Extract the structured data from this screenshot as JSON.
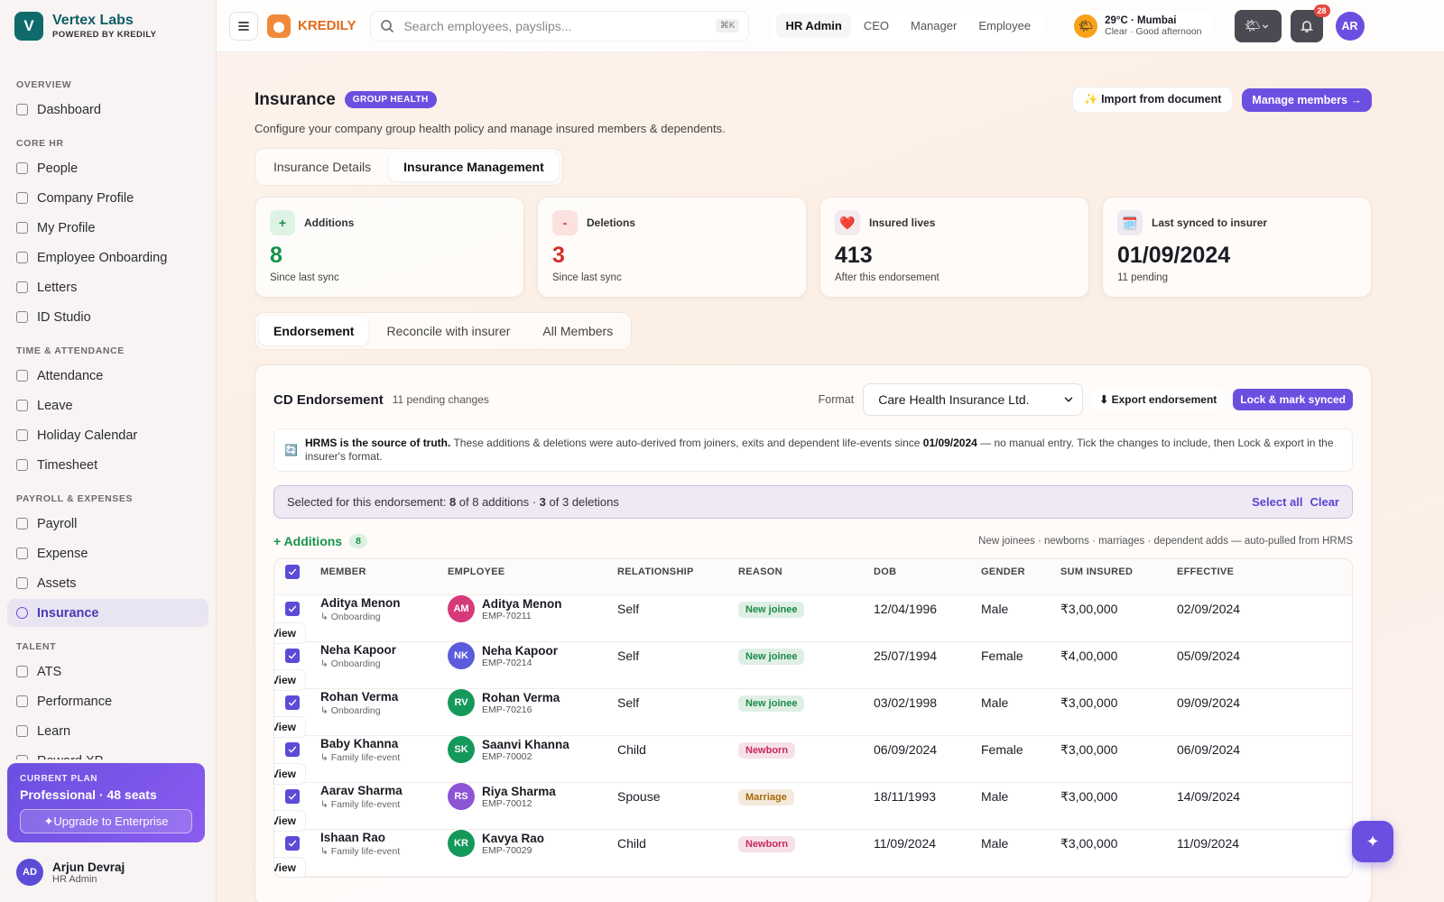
{
  "sidebar": {
    "logo": "V",
    "brand": "Vertex Labs",
    "powered": "POWERED BY KREDILY",
    "sections": [
      {
        "title": "OVERVIEW",
        "items": [
          {
            "label": "Dashboard"
          }
        ]
      },
      {
        "title": "CORE HR",
        "items": [
          {
            "label": "People"
          },
          {
            "label": "Company Profile"
          },
          {
            "label": "My Profile"
          },
          {
            "label": "Employee Onboarding"
          },
          {
            "label": "Letters"
          },
          {
            "label": "ID Studio"
          }
        ]
      },
      {
        "title": "TIME & ATTENDANCE",
        "items": [
          {
            "label": "Attendance"
          },
          {
            "label": "Leave"
          },
          {
            "label": "Holiday Calendar"
          },
          {
            "label": "Timesheet"
          }
        ]
      },
      {
        "title": "PAYROLL & EXPENSES",
        "items": [
          {
            "label": "Payroll"
          },
          {
            "label": "Expense"
          },
          {
            "label": "Assets"
          },
          {
            "label": "Insurance",
            "active": true
          }
        ]
      },
      {
        "title": "TALENT",
        "items": [
          {
            "label": "ATS"
          },
          {
            "label": "Performance"
          },
          {
            "label": "Learn"
          },
          {
            "label": "Reward XP"
          }
        ]
      }
    ],
    "plan": {
      "label": "CURRENT PLAN",
      "name": "Professional · 48 seats",
      "button": "✦Upgrade to Enterprise"
    },
    "user": {
      "initials": "AD",
      "name": "Arjun Devraj",
      "role": "HR Admin"
    }
  },
  "topbar": {
    "product": "KREDILY",
    "search_placeholder": "Search employees, payslips...",
    "shortcut": "⌘K",
    "roles": [
      {
        "label": "HR Admin",
        "active": true
      },
      {
        "label": "CEO"
      },
      {
        "label": "Manager"
      },
      {
        "label": "Employee"
      }
    ],
    "weather": {
      "icon": "🌤",
      "temp": "29°C · Mumbai",
      "desc": "Clear · Good afternoon"
    },
    "theme_icon": "🌤",
    "notifications": "28",
    "avatar": "AR"
  },
  "page": {
    "title": "Insurance",
    "badge": "GROUP HEALTH",
    "description": "Configure your company group health policy and manage insured members & dependents.",
    "import_button": "✨ Import from document",
    "manage_button": "Manage members →",
    "tabs": [
      {
        "label": "Insurance Details"
      },
      {
        "label": "Insurance Management",
        "active": true
      }
    ],
    "stats": [
      {
        "icon": "+",
        "label": "Additions",
        "value": "8",
        "sub": "Since last sync",
        "color": "#17924a",
        "icon_bg": "#dff3e5"
      },
      {
        "icon": "-",
        "label": "Deletions",
        "value": "3",
        "sub": "Since last sync",
        "color": "#d0312d",
        "icon_bg": "#fbe1df"
      },
      {
        "icon": "❤️",
        "label": "Insured lives",
        "value": "413",
        "sub": "After this endorsement",
        "color": "#1b1b24",
        "icon_bg": "#f4e9ee"
      },
      {
        "icon": "🗓️",
        "label": "Last synced to insurer",
        "value": "01/09/2024",
        "sub": "11 pending",
        "color": "#1b1b24",
        "icon_bg": "#ecebf3"
      }
    ],
    "subtabs": [
      {
        "label": "Endorsement",
        "active": true
      },
      {
        "label": "Reconcile with insurer"
      },
      {
        "label": "All Members"
      }
    ],
    "endorsement": {
      "title": "CD Endorsement",
      "subtitle": "11 pending changes",
      "format_label": "Format",
      "format_value": "Care Health Insurance Ltd.",
      "export_button": "⬇ Export endorsement",
      "lock_button": "Lock & mark synced",
      "info": {
        "icon": "🔄",
        "bold": "HRMS is the source of truth.",
        "text1": " These additions & deletions were auto-derived from joiners, exits and dependent life-events since ",
        "date": "01/09/2024",
        "text2": " — no manual entry. Tick the changes to include, then Lock & export in the insurer's format."
      },
      "selection": {
        "prefix": "Selected for this endorsement: ",
        "additions_selected": "8",
        "additions_text": " of 8 additions · ",
        "deletions_selected": "3",
        "deletions_text": " of 3 deletions",
        "select_all": "Select all",
        "clear": "Clear"
      },
      "additions": {
        "title": "+ Additions",
        "count": "8",
        "note": "New joinees · newborns · marriages · dependent adds — auto-pulled from HRMS"
      },
      "columns": [
        "MEMBER",
        "EMPLOYEE",
        "RELATIONSHIP",
        "REASON",
        "DOB",
        "GENDER",
        "SUM INSURED",
        "EFFECTIVE"
      ],
      "rows": [
        {
          "member": "Aditya Menon",
          "member_sub": "↳ Onboarding",
          "initials": "AM",
          "avatar_color": "#d63a7a",
          "employee": "Aditya Menon",
          "emp_id": "EMP-70211",
          "relationship": "Self",
          "reason": "New joinee",
          "reason_color": "#1a8a47",
          "dob": "12/04/1996",
          "gender": "Male",
          "sum_insured": "₹3,00,000",
          "effective": "02/09/2024",
          "action": "View"
        },
        {
          "member": "Neha Kapoor",
          "member_sub": "↳ Onboarding",
          "initials": "NK",
          "avatar_color": "#5b5bdc",
          "employee": "Neha Kapoor",
          "emp_id": "EMP-70214",
          "relationship": "Self",
          "reason": "New joinee",
          "reason_color": "#1a8a47",
          "dob": "25/07/1994",
          "gender": "Female",
          "sum_insured": "₹4,00,000",
          "effective": "05/09/2024",
          "action": "View"
        },
        {
          "member": "Rohan Verma",
          "member_sub": "↳ Onboarding",
          "initials": "RV",
          "avatar_color": "#15995a",
          "employee": "Rohan Verma",
          "emp_id": "EMP-70216",
          "relationship": "Self",
          "reason": "New joinee",
          "reason_color": "#1a8a47",
          "dob": "03/02/1998",
          "gender": "Male",
          "sum_insured": "₹3,00,000",
          "effective": "09/09/2024",
          "action": "View"
        },
        {
          "member": "Baby Khanna",
          "member_sub": "↳ Family life-event",
          "initials": "SK",
          "avatar_color": "#15995a",
          "employee": "Saanvi Khanna",
          "emp_id": "EMP-70002",
          "relationship": "Child",
          "reason": "Newborn",
          "reason_color": "#c7285e",
          "dob": "06/09/2024",
          "gender": "Female",
          "sum_insured": "₹3,00,000",
          "effective": "06/09/2024",
          "action": "View"
        },
        {
          "member": "Aarav Sharma",
          "member_sub": "↳ Family life-event",
          "initials": "RS",
          "avatar_color": "#8d54d6",
          "employee": "Riya Sharma",
          "emp_id": "EMP-70012",
          "relationship": "Spouse",
          "reason": "Marriage",
          "reason_color": "#a86a06",
          "dob": "18/11/1993",
          "gender": "Male",
          "sum_insured": "₹3,00,000",
          "effective": "14/09/2024",
          "action": "View"
        },
        {
          "member": "Ishaan Rao",
          "member_sub": "↳ Family life-event",
          "initials": "KR",
          "avatar_color": "#15995a",
          "employee": "Kavya Rao",
          "emp_id": "EMP-70029",
          "relationship": "Child",
          "reason": "Newborn",
          "reason_color": "#c7285e",
          "dob": "11/09/2024",
          "gender": "Male",
          "sum_insured": "₹3,00,000",
          "effective": "11/09/2024",
          "action": "View"
        }
      ]
    },
    "fab": "✦"
  }
}
